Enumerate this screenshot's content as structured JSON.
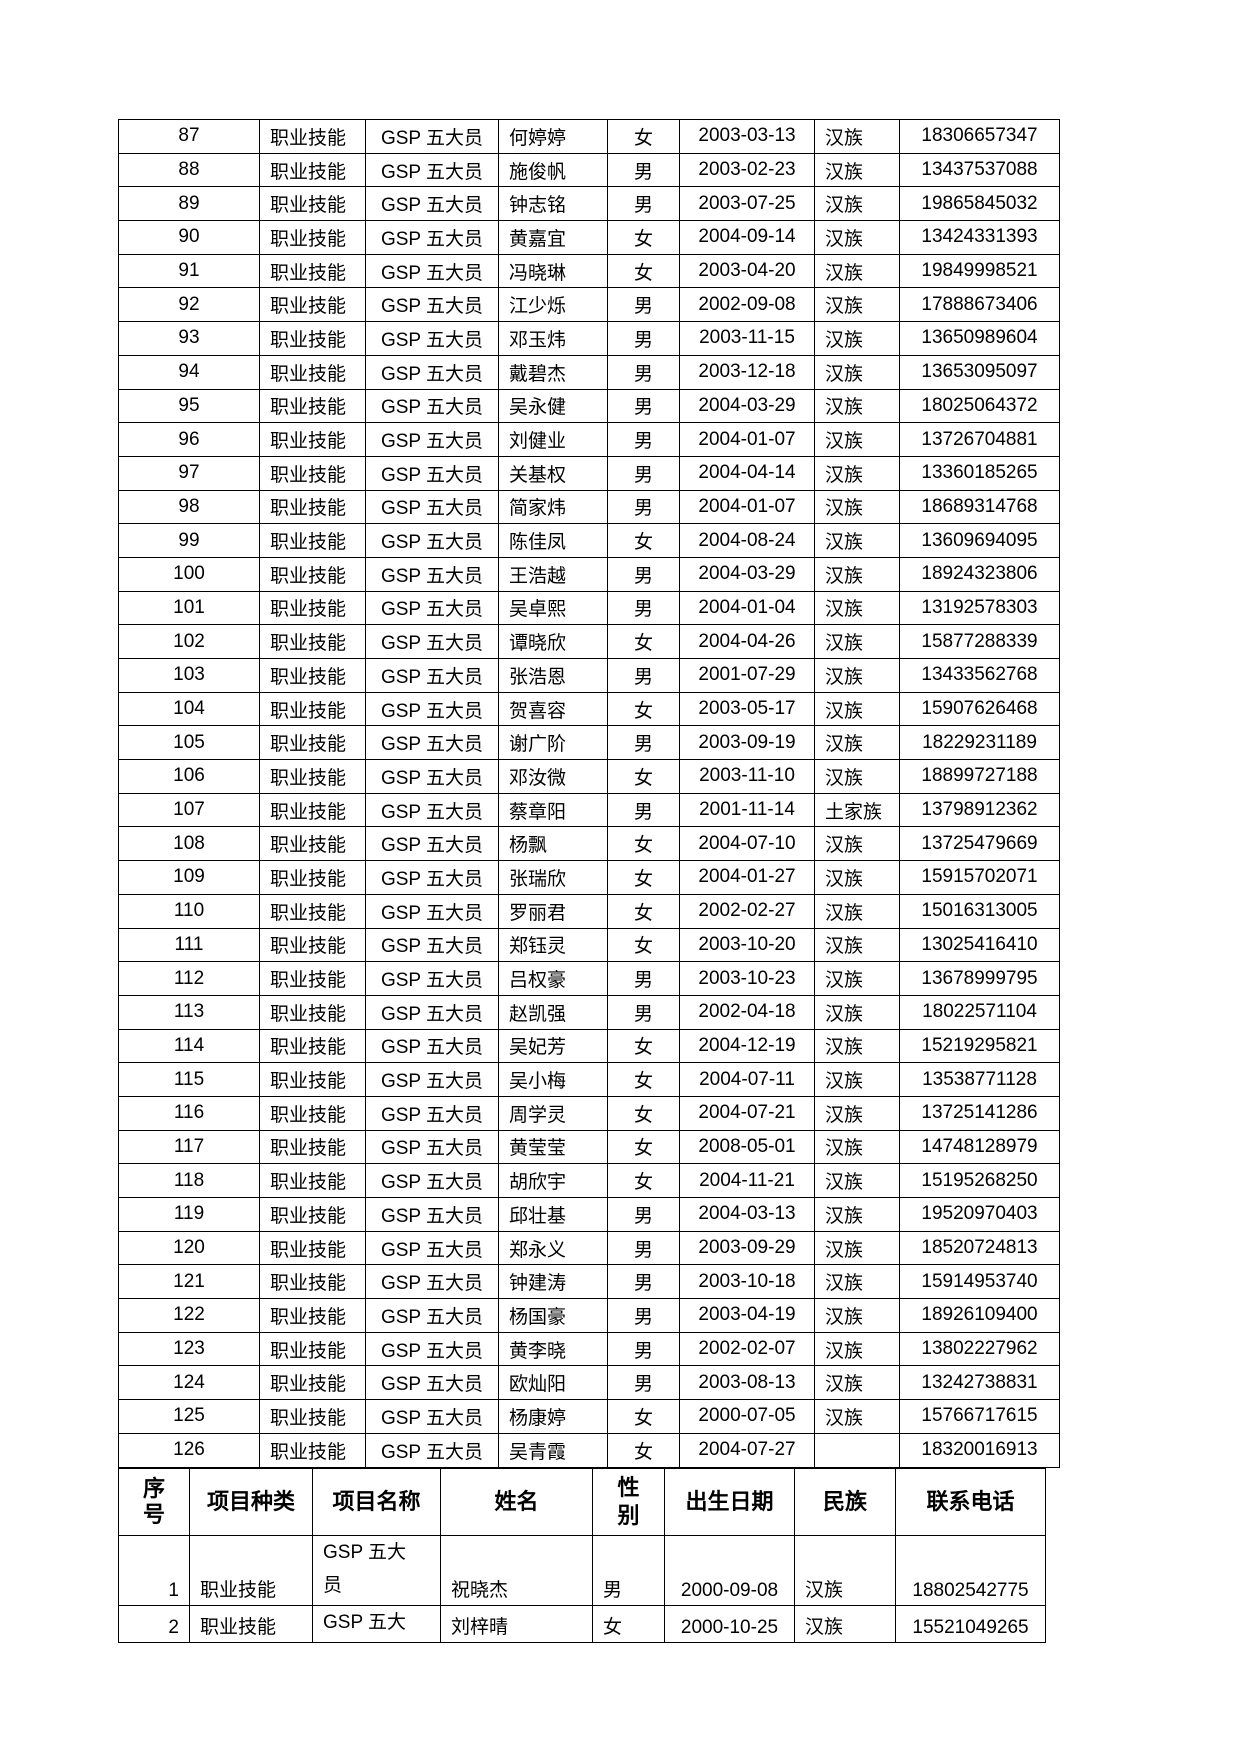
{
  "table1": {
    "rows": [
      [
        "87",
        "职业技能",
        "GSP 五大员",
        "何婷婷",
        "女",
        "2003-03-13",
        "汉族",
        "18306657347"
      ],
      [
        "88",
        "职业技能",
        "GSP 五大员",
        "施俊帆",
        "男",
        "2003-02-23",
        "汉族",
        "13437537088"
      ],
      [
        "89",
        "职业技能",
        "GSP 五大员",
        "钟志铭",
        "男",
        "2003-07-25",
        "汉族",
        "19865845032"
      ],
      [
        "90",
        "职业技能",
        "GSP 五大员",
        "黄嘉宜",
        "女",
        "2004-09-14",
        "汉族",
        "13424331393"
      ],
      [
        "91",
        "职业技能",
        "GSP 五大员",
        "冯晓琳",
        "女",
        "2003-04-20",
        "汉族",
        "19849998521"
      ],
      [
        "92",
        "职业技能",
        "GSP 五大员",
        "江少烁",
        "男",
        "2002-09-08",
        "汉族",
        "17888673406"
      ],
      [
        "93",
        "职业技能",
        "GSP 五大员",
        "邓玉炜",
        "男",
        "2003-11-15",
        "汉族",
        "13650989604"
      ],
      [
        "94",
        "职业技能",
        "GSP 五大员",
        "戴碧杰",
        "男",
        "2003-12-18",
        "汉族",
        "13653095097"
      ],
      [
        "95",
        "职业技能",
        "GSP 五大员",
        "吴永健",
        "男",
        "2004-03-29",
        "汉族",
        "18025064372"
      ],
      [
        "96",
        "职业技能",
        "GSP 五大员",
        "刘健业",
        "男",
        "2004-01-07",
        "汉族",
        "13726704881"
      ],
      [
        "97",
        "职业技能",
        "GSP 五大员",
        "关基权",
        "男",
        "2004-04-14",
        "汉族",
        "13360185265"
      ],
      [
        "98",
        "职业技能",
        "GSP 五大员",
        "简家炜",
        "男",
        "2004-01-07",
        "汉族",
        "18689314768"
      ],
      [
        "99",
        "职业技能",
        "GSP 五大员",
        "陈佳凤",
        "女",
        "2004-08-24",
        "汉族",
        "13609694095"
      ],
      [
        "100",
        "职业技能",
        "GSP 五大员",
        "王浩越",
        "男",
        "2004-03-29",
        "汉族",
        "18924323806"
      ],
      [
        "101",
        "职业技能",
        "GSP 五大员",
        "吴卓熙",
        "男",
        "2004-01-04",
        "汉族",
        "13192578303"
      ],
      [
        "102",
        "职业技能",
        "GSP 五大员",
        "谭晓欣",
        "女",
        "2004-04-26",
        "汉族",
        "15877288339"
      ],
      [
        "103",
        "职业技能",
        "GSP 五大员",
        "张浩恩",
        "男",
        "2001-07-29",
        "汉族",
        "13433562768"
      ],
      [
        "104",
        "职业技能",
        "GSP 五大员",
        "贺喜容",
        "女",
        "2003-05-17",
        "汉族",
        "15907626468"
      ],
      [
        "105",
        "职业技能",
        "GSP 五大员",
        "谢广阶",
        "男",
        "2003-09-19",
        "汉族",
        "18229231189"
      ],
      [
        "106",
        "职业技能",
        "GSP 五大员",
        "邓汝微",
        "女",
        "2003-11-10",
        "汉族",
        "18899727188"
      ],
      [
        "107",
        "职业技能",
        "GSP 五大员",
        "蔡章阳",
        "男",
        "2001-11-14",
        "土家族",
        "13798912362"
      ],
      [
        "108",
        "职业技能",
        "GSP 五大员",
        "杨飘",
        "女",
        "2004-07-10",
        "汉族",
        "13725479669"
      ],
      [
        "109",
        "职业技能",
        "GSP 五大员",
        "张瑞欣",
        "女",
        "2004-01-27",
        "汉族",
        "15915702071"
      ],
      [
        "110",
        "职业技能",
        "GSP 五大员",
        "罗丽君",
        "女",
        "2002-02-27",
        "汉族",
        "15016313005"
      ],
      [
        "111",
        "职业技能",
        "GSP 五大员",
        "郑钰灵",
        "女",
        "2003-10-20",
        "汉族",
        "13025416410"
      ],
      [
        "112",
        "职业技能",
        "GSP 五大员",
        "吕权豪",
        "男",
        "2003-10-23",
        "汉族",
        "13678999795"
      ],
      [
        "113",
        "职业技能",
        "GSP 五大员",
        "赵凯强",
        "男",
        "2002-04-18",
        "汉族",
        "18022571104"
      ],
      [
        "114",
        "职业技能",
        "GSP 五大员",
        "吴妃芳",
        "女",
        "2004-12-19",
        "汉族",
        "15219295821"
      ],
      [
        "115",
        "职业技能",
        "GSP 五大员",
        "吴小梅",
        "女",
        "2004-07-11",
        "汉族",
        "13538771128"
      ],
      [
        "116",
        "职业技能",
        "GSP 五大员",
        "周学灵",
        "女",
        "2004-07-21",
        "汉族",
        "13725141286"
      ],
      [
        "117",
        "职业技能",
        "GSP 五大员",
        "黄莹莹",
        "女",
        "2008-05-01",
        "汉族",
        "14748128979"
      ],
      [
        "118",
        "职业技能",
        "GSP 五大员",
        "胡欣宇",
        "女",
        "2004-11-21",
        "汉族",
        "15195268250"
      ],
      [
        "119",
        "职业技能",
        "GSP 五大员",
        "邱壮基",
        "男",
        "2004-03-13",
        "汉族",
        "19520970403"
      ],
      [
        "120",
        "职业技能",
        "GSP 五大员",
        "郑永义",
        "男",
        "2003-09-29",
        "汉族",
        "18520724813"
      ],
      [
        "121",
        "职业技能",
        "GSP 五大员",
        "钟建涛",
        "男",
        "2003-10-18",
        "汉族",
        "15914953740"
      ],
      [
        "122",
        "职业技能",
        "GSP 五大员",
        "杨国豪",
        "男",
        "2003-04-19",
        "汉族",
        "18926109400"
      ],
      [
        "123",
        "职业技能",
        "GSP 五大员",
        "黄李晓",
        "男",
        "2002-02-07",
        "汉族",
        "13802227962"
      ],
      [
        "124",
        "职业技能",
        "GSP 五大员",
        "欧灿阳",
        "男",
        "2003-08-13",
        "汉族",
        "13242738831"
      ],
      [
        "125",
        "职业技能",
        "GSP 五大员",
        "杨康婷",
        "女",
        "2000-07-05",
        "汉族",
        "15766717615"
      ],
      [
        "126",
        "职业技能",
        "GSP 五大员",
        "吴青霞",
        "女",
        "2004-07-27",
        "",
        "18320016913"
      ]
    ]
  },
  "table2": {
    "headers": [
      "序号",
      "项目种类",
      "项目名称",
      "姓名",
      "性别",
      "出生日期",
      "民族",
      "联系电话"
    ],
    "rows": [
      [
        "1",
        "职业技能",
        "GSP 五大员",
        "祝晓杰",
        "男",
        "2000-09-08",
        "汉族",
        "18802542775"
      ],
      [
        "2",
        "职业技能",
        "GSP 五大",
        "刘梓晴",
        "女",
        "2000-10-25",
        "汉族",
        "15521049265"
      ]
    ]
  }
}
